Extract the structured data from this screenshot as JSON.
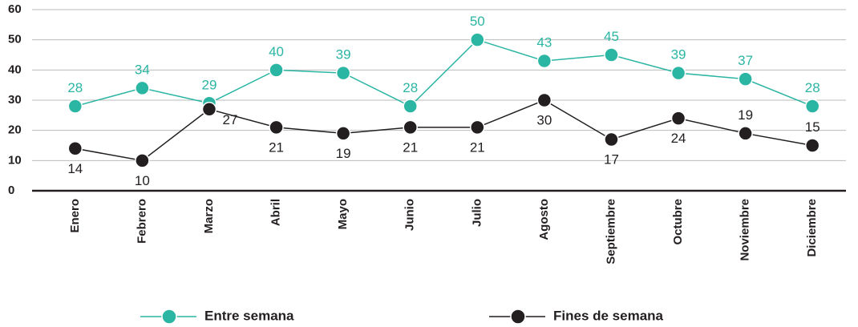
{
  "chart_data": {
    "type": "line",
    "categories": [
      "Enero",
      "Febrero",
      "Marzo",
      "Abril",
      "Mayo",
      "Junio",
      "Julio",
      "Agosto",
      "Septiembre",
      "Octubre",
      "Noviembre",
      "Diciembre"
    ],
    "series": [
      {
        "name": "Entre semana",
        "color": "#2bb5a3",
        "values": [
          28,
          34,
          29,
          40,
          39,
          28,
          50,
          43,
          45,
          39,
          37,
          28
        ]
      },
      {
        "name": "Fines de semana",
        "color": "#231f20",
        "values": [
          14,
          10,
          27,
          21,
          19,
          21,
          21,
          30,
          17,
          24,
          19,
          15
        ]
      }
    ],
    "ylim": [
      0,
      60
    ],
    "yticks": [
      0,
      10,
      20,
      30,
      40,
      50,
      60
    ],
    "grid": true,
    "legend": "bottom"
  }
}
